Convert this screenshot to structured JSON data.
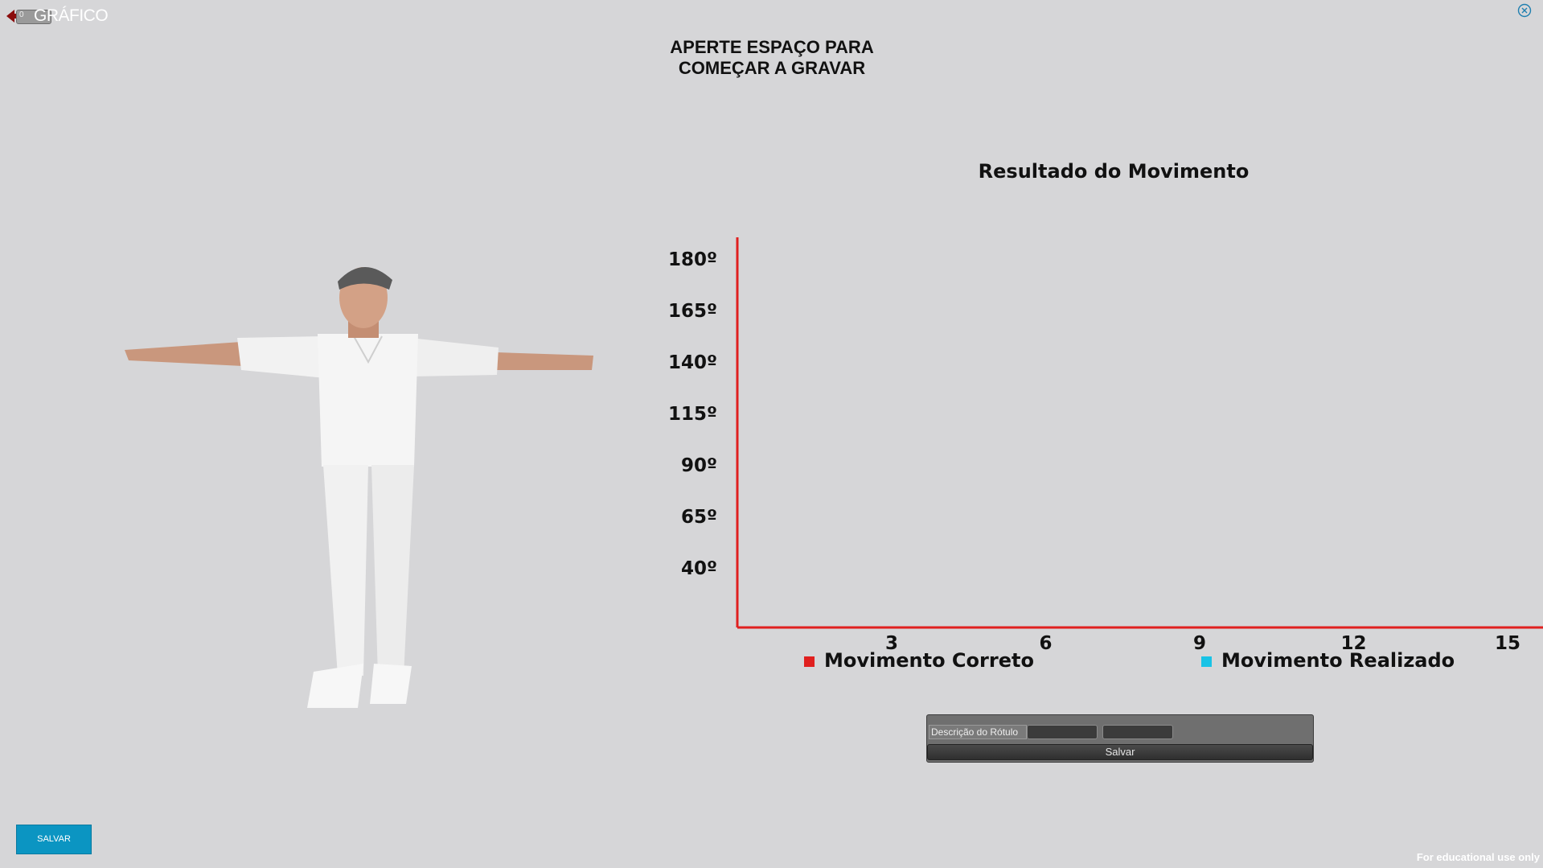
{
  "header": {
    "back_label": "0",
    "title": "GRÁFICO"
  },
  "instruction": {
    "line1": "APERTE ESPAÇO PARA",
    "line2": "COMEÇAR A GRAVAR"
  },
  "chart_data": {
    "type": "line",
    "title": "Resultado do Movimento",
    "x_ticks": [
      "3",
      "6",
      "9",
      "12",
      "15"
    ],
    "y_ticks": [
      "180º",
      "165º",
      "140º",
      "115º",
      "90º",
      "65º",
      "40º"
    ],
    "series": [
      {
        "name": "Movimento Correto",
        "color": "#e0201f",
        "values": []
      },
      {
        "name": "Movimento Realizado",
        "color": "#19c3e6",
        "values": []
      }
    ],
    "axis_color": "#e0201f",
    "legend_position": "bottom"
  },
  "label_form": {
    "description_value": "Descrição do Rótulo",
    "field1_value": "",
    "field2_value": "",
    "save_label": "Salvar"
  },
  "save_button_label": "SALVAR",
  "footer_note": "For educational use only"
}
